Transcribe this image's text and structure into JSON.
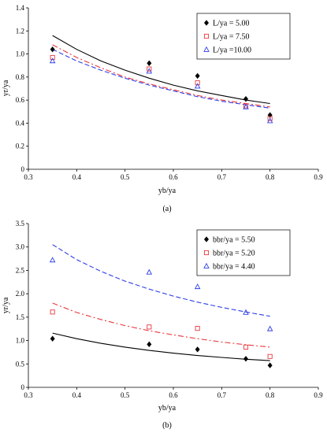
{
  "chart_data": [
    {
      "type": "scatter",
      "panel_label": "(a)",
      "xlabel": "yb/ya",
      "ylabel": "yr/ya",
      "xlim": [
        0.3,
        0.9
      ],
      "ylim": [
        0,
        1.4
      ],
      "xticks": [
        "0.3",
        "0.4",
        "0.5",
        "0.6",
        "0.7",
        "0.8",
        "0.9"
      ],
      "yticks": [
        "0",
        "0.2",
        "0.4",
        "0.6",
        "0.8",
        "1.0",
        "1.2",
        "1.4"
      ],
      "legend_position": "top-right",
      "series": [
        {
          "name": "L/ya = 5.00",
          "marker": "diamond",
          "color": "#000000",
          "line_style": "solid",
          "points": [
            [
              0.35,
              1.04
            ],
            [
              0.55,
              0.92
            ],
            [
              0.65,
              0.81
            ],
            [
              0.75,
              0.61
            ],
            [
              0.8,
              0.47
            ]
          ],
          "fit": [
            [
              0.35,
              1.16
            ],
            [
              0.4,
              1.04
            ],
            [
              0.45,
              0.94
            ],
            [
              0.5,
              0.86
            ],
            [
              0.55,
              0.79
            ],
            [
              0.6,
              0.73
            ],
            [
              0.65,
              0.68
            ],
            [
              0.7,
              0.64
            ],
            [
              0.75,
              0.6
            ],
            [
              0.8,
              0.57
            ]
          ]
        },
        {
          "name": "L/ya = 7.50",
          "marker": "square",
          "color": "#e8383d",
          "line_style": "dashdot",
          "points": [
            [
              0.35,
              0.97
            ],
            [
              0.55,
              0.87
            ],
            [
              0.65,
              0.75
            ],
            [
              0.75,
              0.55
            ],
            [
              0.8,
              0.44
            ]
          ],
          "fit": [
            [
              0.35,
              1.08
            ],
            [
              0.4,
              0.97
            ],
            [
              0.45,
              0.88
            ],
            [
              0.5,
              0.8
            ],
            [
              0.55,
              0.74
            ],
            [
              0.6,
              0.69
            ],
            [
              0.65,
              0.64
            ],
            [
              0.7,
              0.6
            ],
            [
              0.75,
              0.57
            ],
            [
              0.8,
              0.54
            ]
          ]
        },
        {
          "name": "L/ya =10.00",
          "marker": "triangle",
          "color": "#2f3fe8",
          "line_style": "dashed",
          "points": [
            [
              0.35,
              0.94
            ],
            [
              0.55,
              0.85
            ],
            [
              0.65,
              0.72
            ],
            [
              0.75,
              0.54
            ],
            [
              0.8,
              0.42
            ]
          ],
          "fit": [
            [
              0.35,
              1.04
            ],
            [
              0.4,
              0.94
            ],
            [
              0.45,
              0.86
            ],
            [
              0.5,
              0.79
            ],
            [
              0.55,
              0.73
            ],
            [
              0.6,
              0.68
            ],
            [
              0.65,
              0.63
            ],
            [
              0.7,
              0.59
            ],
            [
              0.75,
              0.56
            ],
            [
              0.8,
              0.53
            ]
          ]
        }
      ]
    },
    {
      "type": "scatter",
      "panel_label": "(b)",
      "xlabel": "yb/ya",
      "ylabel": "yr/ya",
      "xlim": [
        0.3,
        0.9
      ],
      "ylim": [
        0,
        3.5
      ],
      "xticks": [
        "0.3",
        "0.4",
        "0.5",
        "0.6",
        "0.7",
        "0.8",
        "0.9"
      ],
      "yticks": [
        "0",
        "0.5",
        "1.0",
        "1.5",
        "2.0",
        "2.5",
        "3.0",
        "3.5"
      ],
      "legend_position": "top-right",
      "series": [
        {
          "name": "bbr/ya = 5.50",
          "marker": "diamond",
          "color": "#000000",
          "line_style": "solid",
          "points": [
            [
              0.35,
              1.04
            ],
            [
              0.55,
              0.92
            ],
            [
              0.65,
              0.81
            ],
            [
              0.75,
              0.61
            ],
            [
              0.8,
              0.47
            ]
          ],
          "fit": [
            [
              0.35,
              1.16
            ],
            [
              0.4,
              1.04
            ],
            [
              0.45,
              0.94
            ],
            [
              0.5,
              0.86
            ],
            [
              0.55,
              0.79
            ],
            [
              0.6,
              0.73
            ],
            [
              0.65,
              0.68
            ],
            [
              0.7,
              0.64
            ],
            [
              0.75,
              0.6
            ],
            [
              0.8,
              0.57
            ]
          ]
        },
        {
          "name": "bbr/ya = 5.20",
          "marker": "square",
          "color": "#e8383d",
          "line_style": "dashdot",
          "points": [
            [
              0.35,
              1.61
            ],
            [
              0.55,
              1.29
            ],
            [
              0.65,
              1.26
            ],
            [
              0.75,
              0.86
            ],
            [
              0.8,
              0.66
            ]
          ],
          "fit": [
            [
              0.35,
              1.8
            ],
            [
              0.4,
              1.6
            ],
            [
              0.45,
              1.45
            ],
            [
              0.5,
              1.32
            ],
            [
              0.55,
              1.21
            ],
            [
              0.6,
              1.12
            ],
            [
              0.65,
              1.04
            ],
            [
              0.7,
              0.97
            ],
            [
              0.75,
              0.91
            ],
            [
              0.8,
              0.86
            ]
          ]
        },
        {
          "name": "bbr/ya = 4.40",
          "marker": "triangle",
          "color": "#2f3fe8",
          "line_style": "dashed",
          "points": [
            [
              0.35,
              2.72
            ],
            [
              0.55,
              2.46
            ],
            [
              0.65,
              2.15
            ],
            [
              0.75,
              1.6
            ],
            [
              0.8,
              1.25
            ]
          ],
          "fit": [
            [
              0.35,
              3.05
            ],
            [
              0.4,
              2.73
            ],
            [
              0.45,
              2.48
            ],
            [
              0.5,
              2.27
            ],
            [
              0.55,
              2.1
            ],
            [
              0.6,
              1.95
            ],
            [
              0.65,
              1.82
            ],
            [
              0.7,
              1.71
            ],
            [
              0.75,
              1.61
            ],
            [
              0.8,
              1.52
            ]
          ]
        }
      ]
    }
  ]
}
